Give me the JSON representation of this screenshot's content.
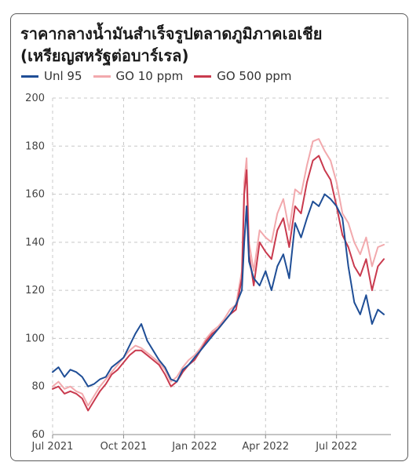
{
  "chart_data": {
    "type": "line",
    "title": "ราคากลางน้ำมันสำเร็จรูปตลาดภูมิภาคเอเชีย",
    "subtitle": "(เหรียญสหรัฐต่อบาร์เรล)",
    "xlabel": "",
    "ylabel": "",
    "ylim": [
      60,
      200
    ],
    "yticks": [
      "60",
      "80",
      "100",
      "120",
      "140",
      "160",
      "180",
      "200"
    ],
    "xticks": [
      "Jul 2021",
      "Oct 2021",
      "Jan 2022",
      "Apr 2022",
      "Jul 2022"
    ],
    "xtick_positions": [
      0,
      3,
      6,
      9,
      12
    ],
    "xlim": [
      0,
      14.3
    ],
    "grid": true,
    "legend_position": "top-left",
    "x": [
      0,
      0.25,
      0.5,
      0.75,
      1,
      1.25,
      1.5,
      1.75,
      2,
      2.25,
      2.5,
      2.75,
      3,
      3.25,
      3.5,
      3.75,
      4,
      4.25,
      4.5,
      4.75,
      5,
      5.25,
      5.5,
      5.75,
      6,
      6.25,
      6.5,
      6.75,
      7,
      7.25,
      7.5,
      7.75,
      8,
      8.1,
      8.2,
      8.3,
      8.5,
      8.75,
      9,
      9.25,
      9.5,
      9.75,
      10,
      10.25,
      10.5,
      10.75,
      11,
      11.25,
      11.5,
      11.75,
      12,
      12.25,
      12.5,
      12.75,
      13,
      13.25,
      13.5,
      13.75,
      14
    ],
    "series": [
      {
        "name": "Unl 95",
        "color": "#1f4e96",
        "values": [
          86,
          88,
          84,
          87,
          86,
          84,
          80,
          81,
          83,
          84,
          88,
          90,
          92,
          97,
          102,
          106,
          99,
          95,
          91,
          88,
          83,
          82,
          87,
          89,
          92,
          95,
          98,
          101,
          104,
          107,
          110,
          114,
          120,
          140,
          155,
          132,
          125,
          122,
          128,
          120,
          130,
          135,
          125,
          148,
          142,
          150,
          157,
          155,
          160,
          158,
          155,
          150,
          130,
          115,
          110,
          118,
          106,
          112,
          110
        ]
      },
      {
        "name": "GO 10 ppm",
        "color": "#f2a9ad",
        "values": [
          80,
          82,
          79,
          80,
          78,
          77,
          72,
          76,
          80,
          83,
          86,
          89,
          92,
          95,
          97,
          96,
          94,
          92,
          90,
          87,
          82,
          84,
          88,
          91,
          93,
          96,
          100,
          103,
          105,
          108,
          112,
          114,
          128,
          165,
          175,
          140,
          128,
          145,
          142,
          140,
          152,
          158,
          145,
          162,
          160,
          172,
          182,
          183,
          178,
          174,
          165,
          152,
          148,
          140,
          135,
          142,
          130,
          138,
          139
        ]
      },
      {
        "name": "GO 500 ppm",
        "color": "#c93a4e",
        "values": [
          79,
          80,
          77,
          78,
          77,
          75,
          70,
          74,
          78,
          81,
          85,
          87,
          90,
          93,
          95,
          95,
          93,
          91,
          89,
          85,
          80,
          82,
          86,
          89,
          91,
          95,
          99,
          102,
          104,
          107,
          110,
          112,
          125,
          160,
          170,
          135,
          122,
          140,
          136,
          133,
          145,
          150,
          138,
          155,
          152,
          165,
          174,
          176,
          170,
          166,
          155,
          143,
          138,
          130,
          126,
          133,
          120,
          130,
          133
        ]
      }
    ]
  }
}
